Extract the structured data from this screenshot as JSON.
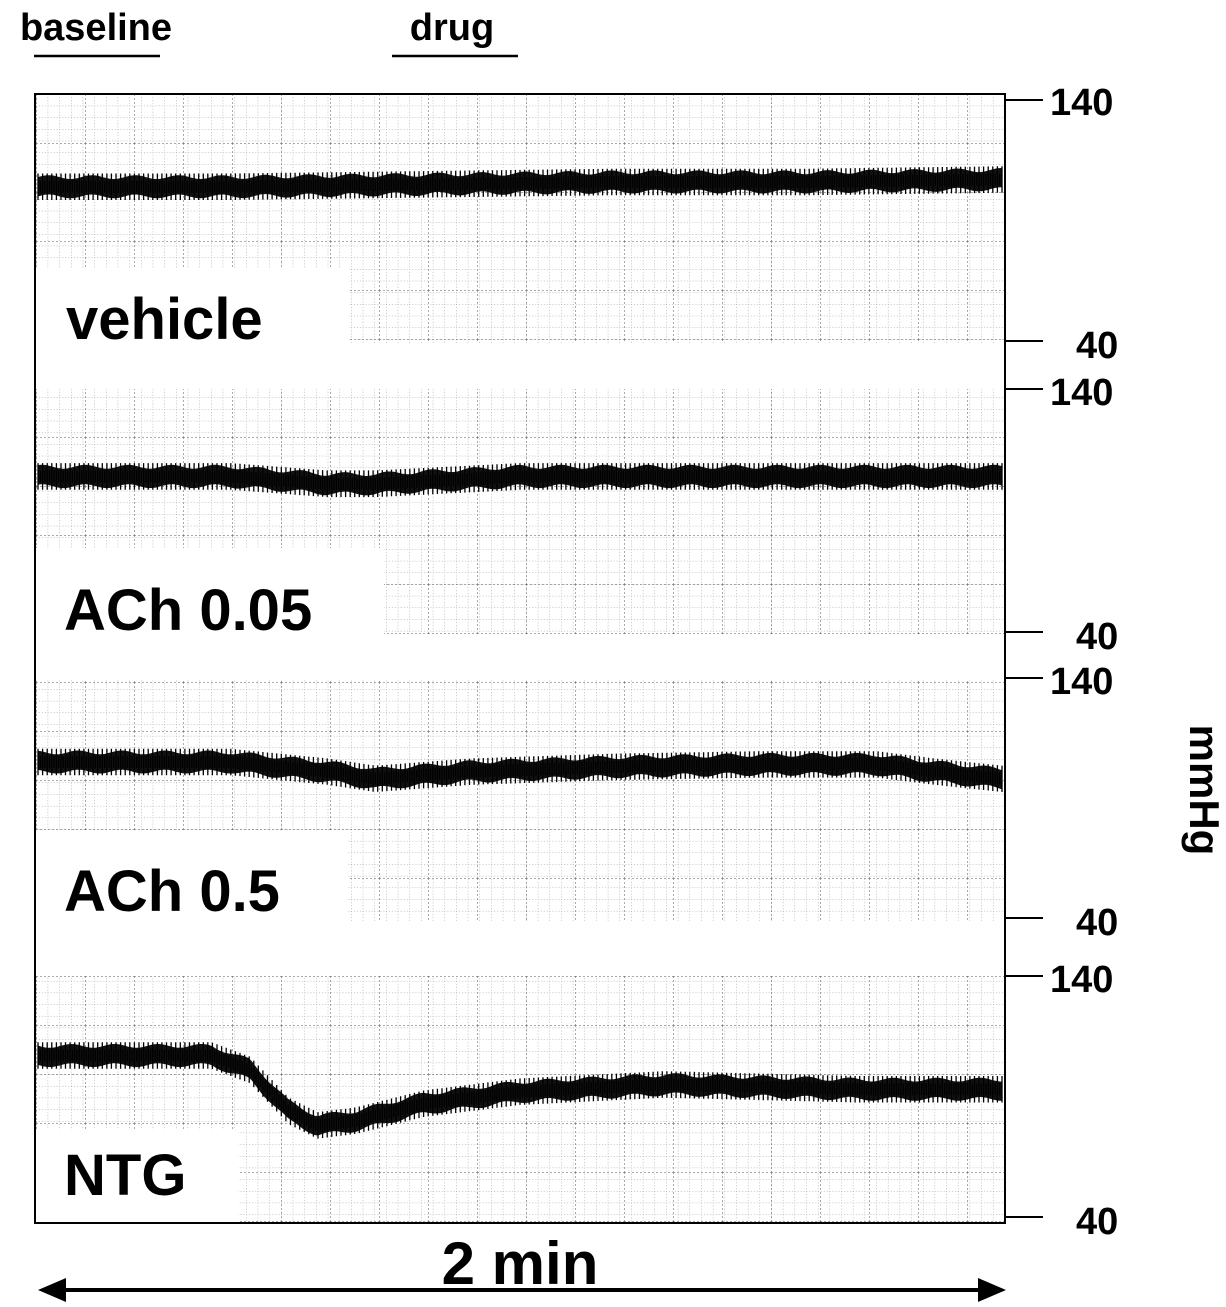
{
  "header": {
    "baseline_label": "baseline",
    "drug_label": "drug"
  },
  "axis": {
    "unit": "mmHg",
    "time_scale": "2 min"
  },
  "chart_data": {
    "type": "line",
    "title": "",
    "xlabel": "2 min",
    "ylabel": "mmHg",
    "x_unit": "fraction of 2 min window",
    "ylim": [
      40,
      140
    ],
    "panels": [
      {
        "label": "vehicle",
        "ylim": [
          40,
          140
        ],
        "ticks": [
          "140",
          "40"
        ],
        "center": [
          [
            0,
            104
          ],
          [
            0.2,
            104
          ],
          [
            0.4,
            105
          ],
          [
            0.6,
            106
          ],
          [
            0.8,
            106
          ],
          [
            1.0,
            107
          ]
        ],
        "amplitude": 4
      },
      {
        "label": "ACh 0.05",
        "ylim": [
          40,
          140
        ],
        "ticks": [
          "140",
          "40"
        ],
        "center": [
          [
            0,
            104
          ],
          [
            0.1,
            104
          ],
          [
            0.2,
            104
          ],
          [
            0.3,
            101
          ],
          [
            0.35,
            101
          ],
          [
            0.5,
            104
          ],
          [
            0.7,
            104
          ],
          [
            0.85,
            104
          ],
          [
            1.0,
            104
          ]
        ],
        "amplitude": 4
      },
      {
        "label": "ACh 0.5",
        "ylim": [
          40,
          140
        ],
        "ticks": [
          "140",
          "40"
        ],
        "center": [
          [
            0,
            105
          ],
          [
            0.2,
            105
          ],
          [
            0.3,
            101
          ],
          [
            0.35,
            98
          ],
          [
            0.45,
            101
          ],
          [
            0.6,
            103
          ],
          [
            0.75,
            104
          ],
          [
            0.87,
            104
          ],
          [
            0.93,
            101
          ],
          [
            1.0,
            98
          ]
        ],
        "amplitude": 4
      },
      {
        "label": "NTG",
        "ylim": [
          40,
          140
        ],
        "ticks": [
          "140",
          "40"
        ],
        "center": [
          [
            0,
            107
          ],
          [
            0.18,
            107
          ],
          [
            0.22,
            101
          ],
          [
            0.26,
            84
          ],
          [
            0.29,
            78
          ],
          [
            0.33,
            80
          ],
          [
            0.4,
            87
          ],
          [
            0.5,
            92
          ],
          [
            0.65,
            95
          ],
          [
            0.75,
            94
          ],
          [
            0.85,
            93
          ],
          [
            1.0,
            93
          ]
        ],
        "amplitude": 4
      }
    ]
  }
}
